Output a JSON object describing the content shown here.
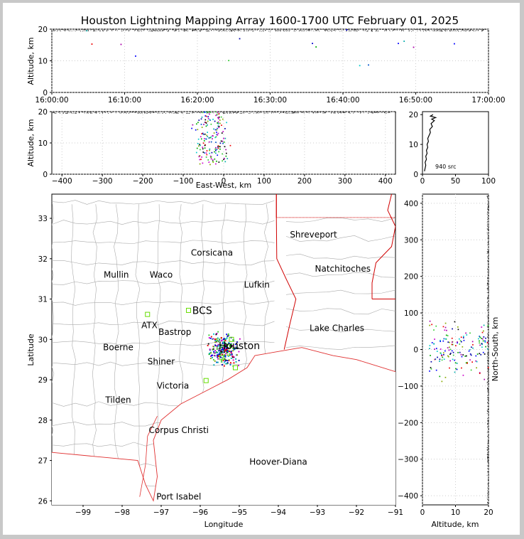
{
  "title": "Houston Lightning Mapping Array 1600-1700 UTC February 01, 2025",
  "chart_data": [
    {
      "type": "scatter",
      "panel": "altitude-vs-time",
      "ylabel": "Altitude, km",
      "xlabel": "",
      "x_ticks": [
        "16:00:00",
        "16:10:00",
        "16:20:00",
        "16:30:00",
        "16:40:00",
        "16:50:00",
        "17:00:00"
      ],
      "y_ticks": [
        0,
        10,
        20
      ],
      "xlim_minutes": [
        0,
        60
      ],
      "ylim": [
        0,
        20
      ],
      "points": [
        {
          "x": 4.8,
          "y": 19.5,
          "c": "#0aa"
        },
        {
          "x": 5.5,
          "y": 15.3,
          "c": "#e00"
        },
        {
          "x": 9.5,
          "y": 15.2,
          "c": "#a0a"
        },
        {
          "x": 11.5,
          "y": 11.5,
          "c": "#00f"
        },
        {
          "x": 24.3,
          "y": 10.1,
          "c": "#3c3"
        },
        {
          "x": 25.8,
          "y": 17.0,
          "c": "#00a"
        },
        {
          "x": 35.8,
          "y": 15.5,
          "c": "#00c"
        },
        {
          "x": 36.3,
          "y": 14.4,
          "c": "#0a0"
        },
        {
          "x": 40.5,
          "y": 19.8,
          "c": "#00f"
        },
        {
          "x": 42.3,
          "y": 8.5,
          "c": "#0cc"
        },
        {
          "x": 43.5,
          "y": 8.7,
          "c": "#05c"
        },
        {
          "x": 47.6,
          "y": 15.5,
          "c": "#00f"
        },
        {
          "x": 48.4,
          "y": 16.2,
          "c": "#0aa"
        },
        {
          "x": 49.7,
          "y": 14.3,
          "c": "#a0a"
        },
        {
          "x": 55.3,
          "y": 15.4,
          "c": "#00f"
        }
      ]
    },
    {
      "type": "scatter",
      "panel": "altitude-vs-east-west",
      "xlabel": "East-West, km",
      "ylabel": "Altitude, km",
      "x_ticks": [
        -400,
        -300,
        -200,
        -100,
        0,
        100,
        200,
        300,
        400
      ],
      "y_ticks": [
        0,
        10,
        20
      ],
      "xlim": [
        -425,
        425
      ],
      "ylim": [
        0,
        20
      ]
    },
    {
      "type": "line",
      "panel": "altitude-histogram",
      "annotation": "940 src",
      "x_ticks": [
        0,
        50,
        100
      ],
      "y_ticks": [
        0,
        10,
        20
      ],
      "xlim": [
        0,
        100
      ],
      "ylim": [
        0,
        21
      ],
      "profile": [
        [
          3,
          1
        ],
        [
          4,
          2
        ],
        [
          5,
          3
        ],
        [
          4,
          4
        ],
        [
          6,
          5
        ],
        [
          5,
          6
        ],
        [
          7,
          7
        ],
        [
          6,
          8
        ],
        [
          8,
          9
        ],
        [
          7,
          10
        ],
        [
          9,
          11
        ],
        [
          8,
          12
        ],
        [
          10,
          13
        ],
        [
          12,
          14
        ],
        [
          11,
          15
        ],
        [
          15,
          16
        ],
        [
          13,
          17
        ],
        [
          18,
          18
        ],
        [
          14,
          18.5
        ],
        [
          20,
          19
        ],
        [
          12,
          19.5
        ],
        [
          16,
          20
        ]
      ]
    },
    {
      "type": "scatter",
      "panel": "plan-view-map",
      "xlabel": "Longitude",
      "ylabel": "Latitude",
      "x_ticks": [
        -99,
        -98,
        -97,
        -96,
        -95,
        -94,
        -93,
        -92,
        -91
      ],
      "y_ticks": [
        26,
        27,
        28,
        29,
        30,
        31,
        32,
        33
      ],
      "xlim": [
        -99.8,
        -91
      ],
      "ylim": [
        25.9,
        33.6
      ],
      "cities": [
        {
          "name": "Shreveport",
          "lon": -93.1,
          "lat": 32.6,
          "c": "#000"
        },
        {
          "name": "Corsicana",
          "lon": -95.7,
          "lat": 32.15,
          "c": "#000"
        },
        {
          "name": "Natchitoches",
          "lon": -92.35,
          "lat": 31.75,
          "c": "#000"
        },
        {
          "name": "Mullin",
          "lon": -98.15,
          "lat": 31.6,
          "c": "#f07030"
        },
        {
          "name": "Waco",
          "lon": -97.0,
          "lat": 31.6,
          "c": "#000"
        },
        {
          "name": "Lufkin",
          "lon": -94.55,
          "lat": 31.35,
          "c": "#000"
        },
        {
          "name": "BCS",
          "lon": -95.95,
          "lat": 30.7,
          "c": "#500"
        },
        {
          "name": "ATX",
          "lon": -97.3,
          "lat": 30.35,
          "c": "#f07030"
        },
        {
          "name": "Bastrop",
          "lon": -96.65,
          "lat": 30.18,
          "c": "#000"
        },
        {
          "name": "Lake Charles",
          "lon": -92.5,
          "lat": 30.28,
          "c": "#000"
        },
        {
          "name": "Boerne",
          "lon": -98.1,
          "lat": 29.8,
          "c": "#000"
        },
        {
          "name": "Houston",
          "lon": -95.0,
          "lat": 29.83,
          "c": "#e8a000"
        },
        {
          "name": "Shiner",
          "lon": -97.0,
          "lat": 29.45,
          "c": "#000"
        },
        {
          "name": "Victoria",
          "lon": -96.7,
          "lat": 28.85,
          "c": "#000"
        },
        {
          "name": "Tilden",
          "lon": -98.1,
          "lat": 28.5,
          "c": "#000"
        },
        {
          "name": "Corpus Christi",
          "lon": -96.55,
          "lat": 27.75,
          "c": "#000"
        },
        {
          "name": "Hoover-Diana",
          "lon": -94.0,
          "lat": 26.97,
          "c": "#0000d0"
        },
        {
          "name": "Port Isabel",
          "lon": -96.55,
          "lat": 26.1,
          "c": "#000"
        }
      ]
    },
    {
      "type": "scatter",
      "panel": "north-south-vs-altitude",
      "xlabel": "Altitude, km",
      "ylabel": "North-South, km",
      "x_ticks": [
        0,
        10,
        20
      ],
      "y_ticks": [
        -400,
        -300,
        -200,
        -100,
        0,
        100,
        200,
        300,
        400
      ],
      "xlim": [
        0,
        20
      ],
      "ylim": [
        -425,
        425
      ]
    }
  ]
}
